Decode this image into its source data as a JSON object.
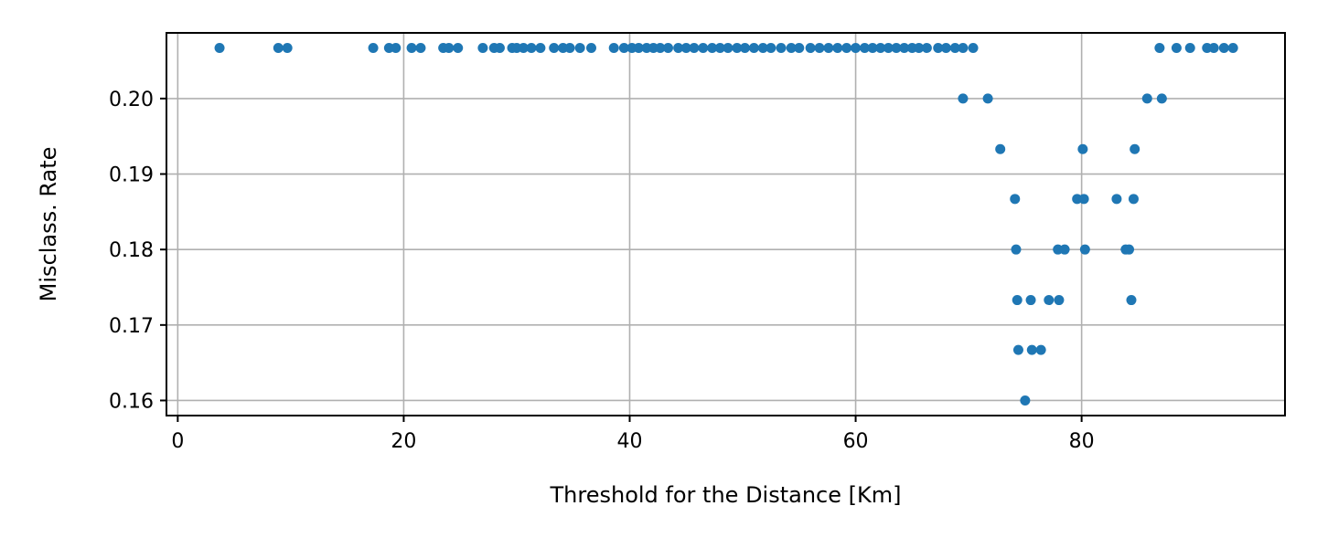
{
  "chart_data": {
    "type": "scatter",
    "title": "",
    "xlabel": "Threshold for the Distance [Km]",
    "ylabel": "Misclass. Rate",
    "xlim": [
      -1,
      98
    ],
    "ylim": [
      0.158,
      0.2087
    ],
    "xticks": [
      0,
      20,
      40,
      60,
      80
    ],
    "xtick_labels": [
      "0",
      "20",
      "40",
      "60",
      "80"
    ],
    "yticks": [
      0.16,
      0.17,
      0.18,
      0.19,
      0.2
    ],
    "ytick_labels": [
      "0.16",
      "0.17",
      "0.18",
      "0.19",
      "0.20"
    ],
    "grid": true,
    "legend": "none",
    "marker_color": "#1f77b4",
    "series": [
      {
        "x": [
          3.7,
          8.9,
          9.7,
          17.3,
          18.7,
          19.3,
          20.7,
          21.5,
          23.5,
          24.0,
          24.8,
          27.0,
          28.0,
          28.5,
          29.6,
          30.0,
          30.6,
          31.3,
          32.1,
          33.3,
          34.1,
          34.7,
          35.6,
          36.6,
          38.6,
          39.5,
          40.2,
          40.8,
          41.5,
          42.1,
          42.7,
          43.4,
          44.3,
          45.0,
          45.7,
          46.5,
          47.3,
          48.0,
          48.7,
          49.5,
          50.2,
          51.0,
          51.8,
          52.5,
          53.4,
          54.3,
          55.0,
          56.0,
          56.8,
          57.6,
          58.4,
          59.2,
          60.0,
          60.8,
          61.5,
          62.2,
          62.9,
          63.6,
          64.3,
          65.0,
          65.6,
          66.3,
          67.3,
          68.0,
          68.8,
          69.5,
          70.4,
          69.5,
          71.7,
          72.8,
          74.1,
          74.2,
          74.3,
          74.4,
          75.0,
          75.5,
          75.6,
          76.4,
          77.1,
          77.9,
          78.0,
          78.5,
          79.6,
          80.1,
          80.2,
          80.3,
          83.1,
          83.9,
          84.2,
          84.4,
          84.6,
          84.7,
          85.8,
          86.9,
          87.1,
          88.4,
          89.6,
          91.1,
          91.7,
          92.6,
          93.4
        ],
        "y": [
          0.2067,
          0.2067,
          0.2067,
          0.2067,
          0.2067,
          0.2067,
          0.2067,
          0.2067,
          0.2067,
          0.2067,
          0.2067,
          0.2067,
          0.2067,
          0.2067,
          0.2067,
          0.2067,
          0.2067,
          0.2067,
          0.2067,
          0.2067,
          0.2067,
          0.2067,
          0.2067,
          0.2067,
          0.2067,
          0.2067,
          0.2067,
          0.2067,
          0.2067,
          0.2067,
          0.2067,
          0.2067,
          0.2067,
          0.2067,
          0.2067,
          0.2067,
          0.2067,
          0.2067,
          0.2067,
          0.2067,
          0.2067,
          0.2067,
          0.2067,
          0.2067,
          0.2067,
          0.2067,
          0.2067,
          0.2067,
          0.2067,
          0.2067,
          0.2067,
          0.2067,
          0.2067,
          0.2067,
          0.2067,
          0.2067,
          0.2067,
          0.2067,
          0.2067,
          0.2067,
          0.2067,
          0.2067,
          0.2067,
          0.2067,
          0.2067,
          0.2067,
          0.2067,
          0.2,
          0.2,
          0.1933,
          0.1867,
          0.18,
          0.1733,
          0.1667,
          0.16,
          0.1733,
          0.1667,
          0.1667,
          0.1733,
          0.18,
          0.1733,
          0.18,
          0.1867,
          0.1933,
          0.1867,
          0.18,
          0.1867,
          0.18,
          0.18,
          0.1733,
          0.1867,
          0.1933,
          0.2,
          0.2067,
          0.2,
          0.2067,
          0.2067,
          0.2067,
          0.2067,
          0.2067,
          0.2067
        ]
      }
    ]
  }
}
